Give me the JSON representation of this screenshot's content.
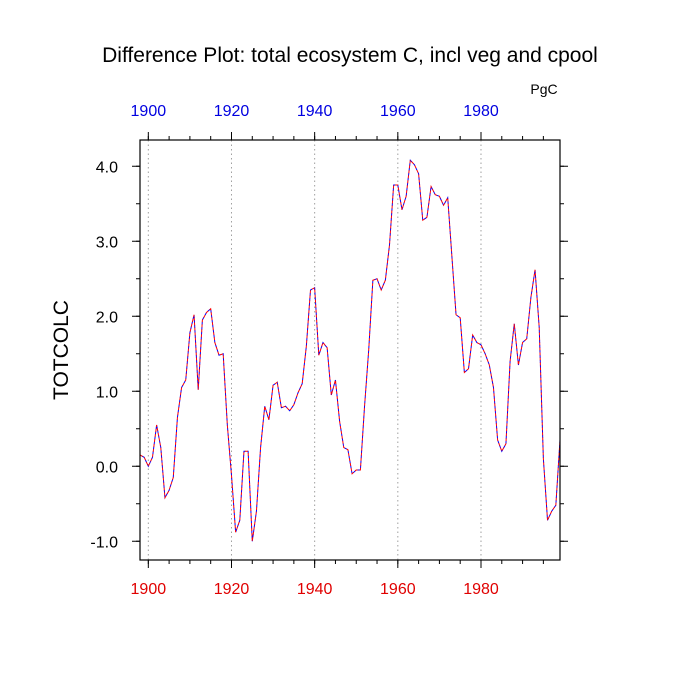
{
  "chart_data": {
    "type": "line",
    "title": "Difference Plot: total ecosystem C, incl veg and cpool",
    "units": "PgC",
    "xlabel": "",
    "ylabel": "TOTCOLC",
    "xlim": [
      1898,
      1999
    ],
    "ylim": [
      -1.25,
      4.35
    ],
    "x_ticks": [
      1900,
      1920,
      1940,
      1960,
      1980
    ],
    "y_ticks": [
      -1.0,
      0.0,
      1.0,
      2.0,
      3.0,
      4.0
    ],
    "y_tick_labels": [
      "-1.0",
      "0.0",
      "1.0",
      "2.0",
      "3.0",
      "4.0"
    ],
    "x_ticks_top": [
      1900,
      1920,
      1940,
      1960,
      1980
    ],
    "grid": "vertical dotted lines at major x ticks",
    "colors": {
      "bottom_axis_labels": "#e00000",
      "top_axis_labels": "#0000e0",
      "series_a": "#ff0000",
      "series_b": "#0000ff"
    },
    "series": [
      {
        "x": [
          1898,
          1899,
          1900,
          1901,
          1902,
          1903,
          1904,
          1905,
          1906,
          1907,
          1908,
          1909,
          1910,
          1911,
          1912,
          1913,
          1914,
          1915,
          1916,
          1917,
          1918,
          1919,
          1920,
          1921,
          1922,
          1923,
          1924,
          1925,
          1926,
          1927,
          1928,
          1929,
          1930,
          1931,
          1932,
          1933,
          1934,
          1935,
          1936,
          1937,
          1938,
          1939,
          1940,
          1941,
          1942,
          1943,
          1944,
          1945,
          1946,
          1947,
          1948,
          1949,
          1950,
          1951,
          1952,
          1953,
          1954,
          1955,
          1956,
          1957,
          1958,
          1959,
          1960,
          1961,
          1962,
          1963,
          1964,
          1965,
          1966,
          1967,
          1968,
          1969,
          1970,
          1971,
          1972,
          1973,
          1974,
          1975,
          1976,
          1977,
          1978,
          1979,
          1980,
          1981,
          1982,
          1983,
          1984,
          1985,
          1986,
          1987,
          1988,
          1989,
          1990,
          1991,
          1992,
          1993,
          1994,
          1995,
          1996,
          1997,
          1998,
          1999
        ],
        "values": [
          0.15,
          0.12,
          0.0,
          0.12,
          0.55,
          0.25,
          -0.42,
          -0.32,
          -0.15,
          0.65,
          1.05,
          1.15,
          1.78,
          2.02,
          1.02,
          1.95,
          2.05,
          2.1,
          1.65,
          1.48,
          1.5,
          0.55,
          -0.12,
          -0.88,
          -0.72,
          0.2,
          0.2,
          -1.0,
          -0.6,
          0.25,
          0.8,
          0.62,
          1.08,
          1.12,
          0.78,
          0.8,
          0.74,
          0.82,
          0.98,
          1.1,
          1.6,
          2.35,
          2.38,
          1.48,
          1.65,
          1.58,
          0.95,
          1.15,
          0.6,
          0.25,
          0.22,
          -0.1,
          -0.05,
          -0.05,
          0.8,
          1.55,
          2.48,
          2.5,
          2.35,
          2.48,
          2.95,
          3.75,
          3.75,
          3.42,
          3.6,
          4.08,
          4.02,
          3.9,
          3.28,
          3.32,
          3.73,
          3.62,
          3.6,
          3.48,
          3.58,
          2.8,
          2.02,
          1.98,
          1.25,
          1.3,
          1.75,
          1.65,
          1.62,
          1.5,
          1.35,
          1.05,
          0.35,
          0.2,
          0.3,
          1.4,
          1.9,
          1.35,
          1.65,
          1.7,
          2.25,
          2.62,
          1.85,
          0.1,
          -0.72,
          -0.6,
          -0.52,
          0.35
        ]
      }
    ]
  }
}
